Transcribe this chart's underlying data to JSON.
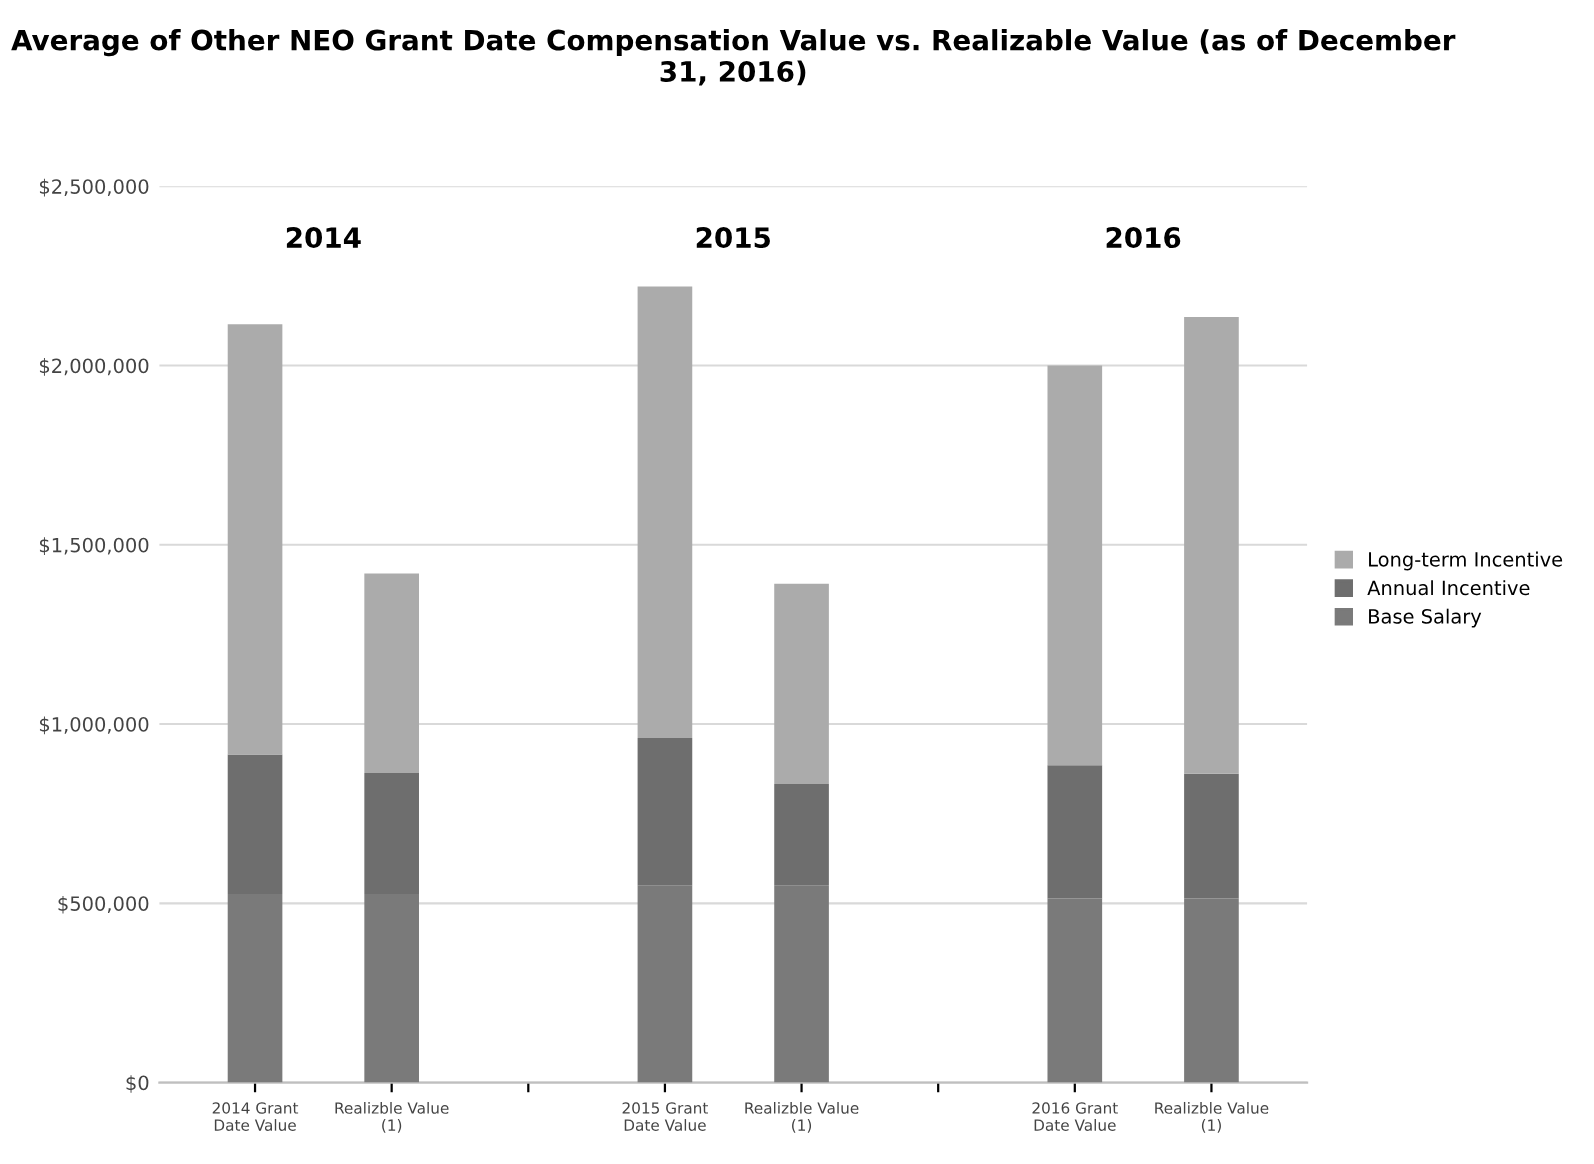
{
  "chart_data": {
    "type": "bar",
    "stacked": true,
    "title": "Average of Other NEO Grant Date Compensation Value vs. Realizable Value (as of December 31, 2016)",
    "categories": [
      "2014 Grant\nDate Value",
      "Realizble Value\n(1)",
      null,
      "2015 Grant\nDate Value",
      "Realizble Value\n(1)",
      null,
      "2016 Grant\nDate Value",
      "Realizble Value\n(1)"
    ],
    "series": [
      {
        "name": "Base Salary",
        "color": "#7a7a7a",
        "values": [
          526000,
          526000,
          null,
          550000,
          550000,
          null,
          513000,
          513000
        ]
      },
      {
        "name": "Annual Incentive",
        "color": "#6e6e6e",
        "values": [
          389000,
          337000,
          null,
          411000,
          283000,
          null,
          372000,
          348000
        ]
      },
      {
        "name": "Long-term Incentive",
        "color": "#ababab",
        "values": [
          1200000,
          557000,
          null,
          1259000,
          558000,
          null,
          1115000,
          1274000
        ]
      }
    ],
    "annotations": [
      "2014",
      "2015",
      "2016"
    ],
    "ylim": [
      0,
      2500000
    ],
    "yticks": [
      {
        "value": 0,
        "label": "$0"
      },
      {
        "value": 500000,
        "label": "$500,000"
      },
      {
        "value": 1000000,
        "label": "$1,000,000"
      },
      {
        "value": 1500000,
        "label": "$1,500,000"
      },
      {
        "value": 2000000,
        "label": "$2,000,000"
      },
      {
        "value": 2500000,
        "label": "$2,500,000"
      }
    ],
    "grid": "y",
    "legend": "right"
  }
}
